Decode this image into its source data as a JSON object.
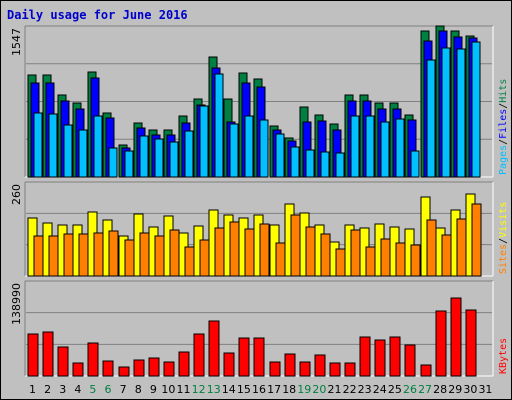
{
  "chart_data": {
    "type": "bar",
    "title": "Daily usage for June 2016",
    "categories": [
      "1",
      "2",
      "3",
      "4",
      "5",
      "6",
      "7",
      "8",
      "9",
      "10",
      "11",
      "12",
      "13",
      "14",
      "15",
      "16",
      "17",
      "18",
      "19",
      "20",
      "21",
      "22",
      "23",
      "24",
      "25",
      "26",
      "27",
      "28",
      "29",
      "30",
      "31"
    ],
    "weekend_days": [
      4,
      5,
      11,
      12,
      18,
      19,
      25,
      26
    ],
    "colors": {
      "hits": "#008040",
      "files": "#0000ff",
      "pages": "#00c0ff",
      "visits": "#ffff00",
      "sites": "#ff8000",
      "kbytes": "#ff0000",
      "weekday_label": "#000000",
      "weekend_label": "#008040",
      "panel_bg": "#c0c0c0",
      "title": "#0000cc"
    },
    "panels": [
      {
        "id": "hits-files-pages",
        "ymax_label": "1547",
        "ymax": 1547,
        "legend": [
          "Pages",
          "/",
          "Files",
          "/",
          "Hits"
        ],
        "legend_colors": [
          "#00c0ff",
          "#000000",
          "#0000ff",
          "#000000",
          "#008040"
        ],
        "series": [
          {
            "name": "Hits",
            "color": "#008040",
            "values": [
              1040,
              1040,
              840,
              760,
              1080,
              660,
              330,
              550,
              480,
              480,
              620,
              800,
              1230,
              800,
              1070,
              1000,
              520,
              400,
              720,
              640,
              540,
              840,
              840,
              760,
              760,
              640,
              1500,
              1550,
              1500,
              1440,
              0
            ]
          },
          {
            "name": "Files",
            "color": "#0000ff",
            "values": [
              960,
              960,
              780,
              700,
              1010,
              600,
              300,
              500,
              430,
              430,
              550,
              740,
              1120,
              560,
              960,
              920,
              480,
              370,
              560,
              570,
              480,
              780,
              780,
              700,
              700,
              580,
              1390,
              1500,
              1430,
              1420,
              0
            ]
          },
          {
            "name": "Pages",
            "color": "#00c0ff",
            "values": [
              660,
              650,
              530,
              480,
              620,
              300,
              270,
              420,
              390,
              360,
              470,
              730,
              1060,
              540,
              630,
              580,
              440,
              310,
              280,
              260,
              250,
              620,
              630,
              560,
              590,
              270,
              1200,
              1320,
              1310,
              1380,
              0
            ]
          }
        ]
      },
      {
        "id": "visits-sites",
        "ymax_label": "260",
        "ymax": 260,
        "legend": [
          "Sites",
          "/",
          "Visits"
        ],
        "legend_colors": [
          "#ff8000",
          "#000000",
          "#ffff00"
        ],
        "series": [
          {
            "name": "Visits",
            "color": "#ffff00",
            "values": [
              160,
              146,
              142,
              140,
              178,
              156,
              110,
              172,
              136,
              166,
              120,
              138,
              182,
              170,
              160,
              168,
              142,
              200,
              175,
              140,
              95,
              140,
              132,
              144,
              136,
              130,
              218,
              134,
              182,
              228,
              0
            ]
          },
          {
            "name": "Sites",
            "color": "#ff8000",
            "values": [
              110,
              110,
              116,
              115,
              120,
              124,
              100,
              118,
              110,
              126,
              80,
              100,
              132,
              150,
              130,
              144,
              92,
              170,
              136,
              116,
              74,
              126,
              80,
              103,
              90,
              86,
              156,
              114,
              157,
              200,
              0
            ]
          }
        ]
      },
      {
        "id": "kbytes",
        "ymax_label": "138990",
        "ymax": 138990,
        "legend": [
          "KBytes"
        ],
        "legend_colors": [
          "#ff0000"
        ],
        "series": [
          {
            "name": "KBytes",
            "color": "#ff0000",
            "values": [
              61000,
              64000,
              42000,
              19000,
              49000,
              22000,
              13000,
              24000,
              26000,
              20000,
              35000,
              62000,
              80000,
              33000,
              56000,
              56000,
              20000,
              32000,
              20000,
              30000,
              19000,
              19000,
              57000,
              53000,
              57000,
              45000,
              16000,
              95000,
              114000,
              97000,
              0
            ]
          }
        ]
      }
    ]
  }
}
